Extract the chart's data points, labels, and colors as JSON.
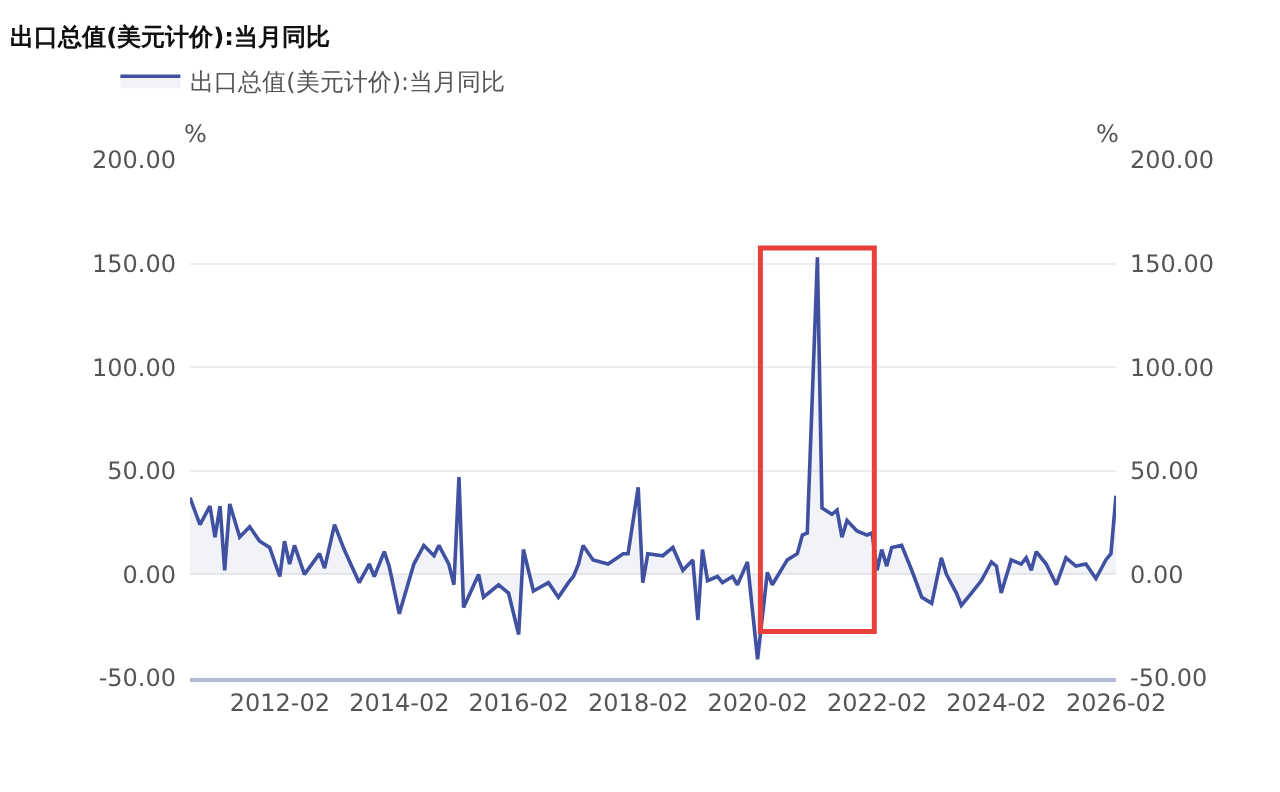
{
  "chart_data": {
    "type": "area",
    "title": "出口总值(美元计价):当月同比",
    "ylabel": "%",
    "y2label": "%",
    "series": [
      {
        "name": "出口总值(美元计价):当月同比",
        "color": "#3f51a0",
        "x": [
          "2010-08",
          "2010-10",
          "2010-12",
          "2011-01",
          "2011-02",
          "2011-03",
          "2011-04",
          "2011-06",
          "2011-08",
          "2011-10",
          "2011-12",
          "2012-02",
          "2012-03",
          "2012-04",
          "2012-05",
          "2012-07",
          "2012-10",
          "2012-11",
          "2013-01",
          "2013-03",
          "2013-06",
          "2013-08",
          "2013-09",
          "2013-11",
          "2013-12",
          "2014-02",
          "2014-05",
          "2014-07",
          "2014-09",
          "2014-10",
          "2014-12",
          "2015-01",
          "2015-02",
          "2015-03",
          "2015-06",
          "2015-07",
          "2015-10",
          "2015-12",
          "2016-02",
          "2016-03",
          "2016-05",
          "2016-08",
          "2016-10",
          "2016-12",
          "2017-01",
          "2017-02",
          "2017-03",
          "2017-05",
          "2017-08",
          "2017-11",
          "2017-12",
          "2018-02",
          "2018-03",
          "2018-04",
          "2018-07",
          "2018-09",
          "2018-11",
          "2019-01",
          "2019-02",
          "2019-03",
          "2019-04",
          "2019-06",
          "2019-07",
          "2019-09",
          "2019-10",
          "2019-12",
          "2020-02",
          "2020-04",
          "2020-05",
          "2020-08",
          "2020-10",
          "2020-11",
          "2020-12",
          "2021-02",
          "2021-03",
          "2021-05",
          "2021-06",
          "2021-07",
          "2021-08",
          "2021-10",
          "2021-12",
          "2022-01",
          "2022-02",
          "2022-03",
          "2022-04",
          "2022-05",
          "2022-07",
          "2022-09",
          "2022-11",
          "2023-01",
          "2023-03",
          "2023-04",
          "2023-06",
          "2023-07",
          "2023-09",
          "2023-11",
          "2024-01",
          "2024-02",
          "2024-03",
          "2024-05",
          "2024-07",
          "2024-08",
          "2024-09",
          "2024-10",
          "2024-12",
          "2025-02",
          "2025-04",
          "2025-06",
          "2025-08",
          "2025-10",
          "2025-12",
          "2026-01",
          "2026-02"
        ],
        "values": [
          37,
          24,
          33,
          18,
          33,
          2,
          34,
          18,
          23,
          16,
          13,
          -1,
          16,
          5,
          14,
          0,
          10,
          3,
          24,
          12,
          -4,
          5,
          -1,
          11,
          4,
          -19,
          5,
          14,
          9,
          14,
          5,
          -5,
          47,
          -16,
          0,
          -11,
          -5,
          -9,
          -29,
          12,
          -8,
          -4,
          -11,
          -4,
          -1,
          5,
          14,
          7,
          5,
          10,
          10,
          42,
          -4,
          10,
          9,
          13,
          2,
          7,
          -22,
          12,
          -3,
          -1,
          -4,
          -1,
          -5,
          6,
          -41,
          1,
          -5,
          7,
          10,
          19,
          20,
          153,
          32,
          29,
          31,
          18,
          26,
          21,
          19,
          20,
          2,
          12,
          4,
          13,
          14,
          2,
          -11,
          -14,
          8,
          0,
          -9,
          -15,
          -9,
          -3,
          6,
          4,
          -9,
          7,
          5,
          8,
          2,
          11,
          5,
          -5,
          8,
          4,
          5,
          -2,
          7,
          10,
          38
        ]
      }
    ],
    "xlim": [
      "2010-08",
      "2026-02"
    ],
    "xticks": [
      "2012-02",
      "2014-02",
      "2016-02",
      "2018-02",
      "2020-02",
      "2022-02",
      "2024-02",
      "2026-02"
    ],
    "ylim": [
      -50,
      200
    ],
    "yticks": [
      {
        "value": -50,
        "label": "-50.00"
      },
      {
        "value": 0,
        "label": "0.00"
      },
      {
        "value": 50,
        "label": "50.00"
      },
      {
        "value": 100,
        "label": "100.00"
      },
      {
        "value": 150,
        "label": "150.00"
      },
      {
        "value": 200,
        "label": "200.00"
      }
    ],
    "y2lim": [
      -50,
      200
    ],
    "y2ticks": [
      {
        "value": -50,
        "label": "-50.00"
      },
      {
        "value": 0,
        "label": "0.00"
      },
      {
        "value": 50,
        "label": "50.00"
      },
      {
        "value": 100,
        "label": "100.00"
      },
      {
        "value": 150,
        "label": "150.00"
      },
      {
        "value": 200,
        "label": "200.00"
      }
    ],
    "grid": "y",
    "legend": "top left",
    "marker": "none",
    "line_style": "solid"
  }
}
